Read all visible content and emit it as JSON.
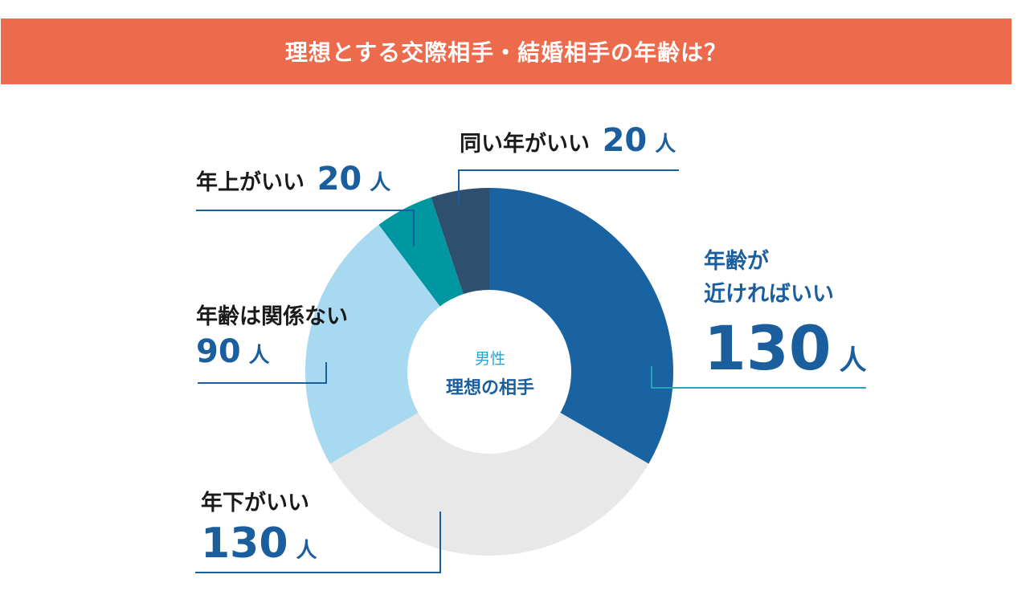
{
  "title": "理想とする交際相手・結婚相手の年齢は？",
  "center": {
    "sub": "男性",
    "main": "理想の相手"
  },
  "unit": "人",
  "labels": {
    "near": {
      "line1": "年齢が",
      "line2": "近ければいい",
      "value": "130"
    },
    "same": {
      "text": "同い年がいい",
      "value": "20"
    },
    "older": {
      "text": "年上がいい",
      "value": "20"
    },
    "any": {
      "text": "年齢は関係ない",
      "value": "90"
    },
    "younger": {
      "text": "年下がいい",
      "value": "130"
    }
  },
  "colors": {
    "banner": "#ec6b4c",
    "near": "#1963a2",
    "younger": "#e8e8e8",
    "any": "#a7d9f0",
    "older": "#0097a0",
    "same": "#2f4f6f",
    "leader_blue": "#1a5e9e",
    "leader_teal": "#2aa3b8"
  },
  "chart_data": {
    "type": "pie",
    "donut": true,
    "title": "理想とする交際相手・結婚相手の年齢は？",
    "center_label": "男性 理想の相手",
    "unit": "人",
    "categories": [
      "年齢が近ければいい",
      "年下がいい",
      "年齢は関係ない",
      "年上がいい",
      "同い年がいい"
    ],
    "values": [
      130,
      130,
      90,
      20,
      20
    ],
    "start": "top",
    "direction": "clockwise"
  }
}
